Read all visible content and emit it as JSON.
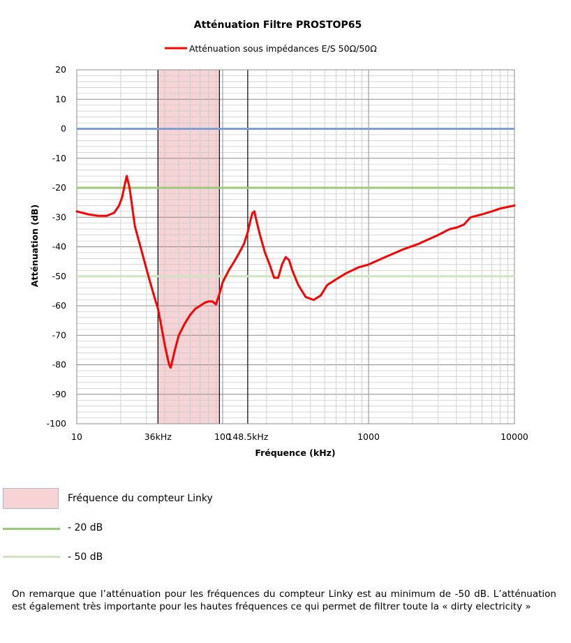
{
  "chart_data": {
    "type": "line",
    "title": "Atténuation  Filtre PROSTOP65",
    "xlabel": "Fréquence (kHz)",
    "ylabel": "Atténuation (dB)",
    "x_scale": "log",
    "xlim": [
      10,
      10000
    ],
    "ylim": [
      -100,
      20
    ],
    "y_ticks": [
      "20",
      "10",
      "0",
      "-10",
      "-20",
      "-30",
      "-40",
      "-50",
      "-60",
      "-70",
      "-80",
      "-90",
      "-100"
    ],
    "x_ticks": [
      {
        "value": 10,
        "label": "10"
      },
      {
        "value": 36,
        "label": "36kHz"
      },
      {
        "value": 100,
        "label": "100"
      },
      {
        "value": 148.5,
        "label": "148.5kHz"
      },
      {
        "value": 1000,
        "label": "1000"
      },
      {
        "value": 10000,
        "label": "10000"
      }
    ],
    "grid": true,
    "legend_position": "top-center",
    "series": [
      {
        "name": "Atténuation sous impédances E/S 50Ω/50Ω",
        "color": "#ff0000",
        "x": [
          10,
          12,
          14,
          16,
          18,
          19.5,
          20.5,
          21.3,
          22,
          23,
          25,
          28,
          31,
          34,
          36,
          38,
          40,
          42,
          43,
          44,
          45,
          47,
          50,
          55,
          60,
          65,
          70,
          75,
          80,
          85,
          90,
          95,
          100,
          110,
          120,
          130,
          140,
          148.5,
          155,
          160,
          165,
          170,
          180,
          195,
          210,
          225,
          240,
          255,
          270,
          285,
          300,
          330,
          370,
          420,
          470,
          520,
          600,
          700,
          850,
          1000,
          1300,
          1700,
          2200,
          3000,
          3600,
          4000,
          4500,
          5000,
          6000,
          7000,
          8000,
          10000
        ],
        "y": [
          -28,
          -29,
          -29.5,
          -29.5,
          -28.5,
          -26,
          -23,
          -19,
          -16,
          -20,
          -33,
          -42,
          -50,
          -57,
          -61,
          -67,
          -73,
          -78,
          -80,
          -81,
          -79,
          -75,
          -70,
          -66,
          -63,
          -61,
          -60,
          -59,
          -58.5,
          -58.5,
          -59.5,
          -56,
          -52,
          -48,
          -45,
          -42,
          -39,
          -35,
          -31,
          -28.5,
          -28,
          -31,
          -36,
          -42,
          -46,
          -50.5,
          -50.5,
          -46,
          -43.5,
          -44.5,
          -48,
          -53,
          -57,
          -58,
          -56.5,
          -53,
          -51,
          -49,
          -47,
          -46,
          -43.5,
          -41,
          -39,
          -36,
          -34,
          -33.5,
          -32.5,
          -30,
          -29,
          -28,
          -27,
          -26
        ]
      },
      {
        "name": "0 dB reference",
        "color": "#7f9fd4",
        "x": [
          10,
          10000
        ],
        "y": [
          0,
          0
        ]
      },
      {
        "name": "- 20 dB",
        "color": "#9bc97d",
        "x": [
          10,
          10000
        ],
        "y": [
          -20,
          -20
        ]
      },
      {
        "name": "- 50 dB",
        "color": "#cfe4c0",
        "x": [
          10,
          10000
        ],
        "y": [
          -50,
          -50
        ]
      }
    ],
    "shaded_band": {
      "from": 36,
      "to": 95,
      "color": "#f6d3d5",
      "label": "Fréquence du compteur Linky"
    },
    "vertical_markers": [
      36,
      95,
      148.5
    ]
  },
  "key": {
    "items": [
      {
        "label": "Fréquence du compteur Linky",
        "kind": "box"
      },
      {
        "label": "- 20 dB",
        "kind": "line",
        "color": "#9bc97d"
      },
      {
        "label": "- 50 dB",
        "kind": "line",
        "color": "#cfe4c0"
      }
    ]
  },
  "note": "On remarque que l’atténuation pour les fréquences du compteur Linky est au minimum de -50 dB. L’atténuation est également très importante pour les hautes fréquences ce qui permet de filtrer toute la « dirty electricity »"
}
